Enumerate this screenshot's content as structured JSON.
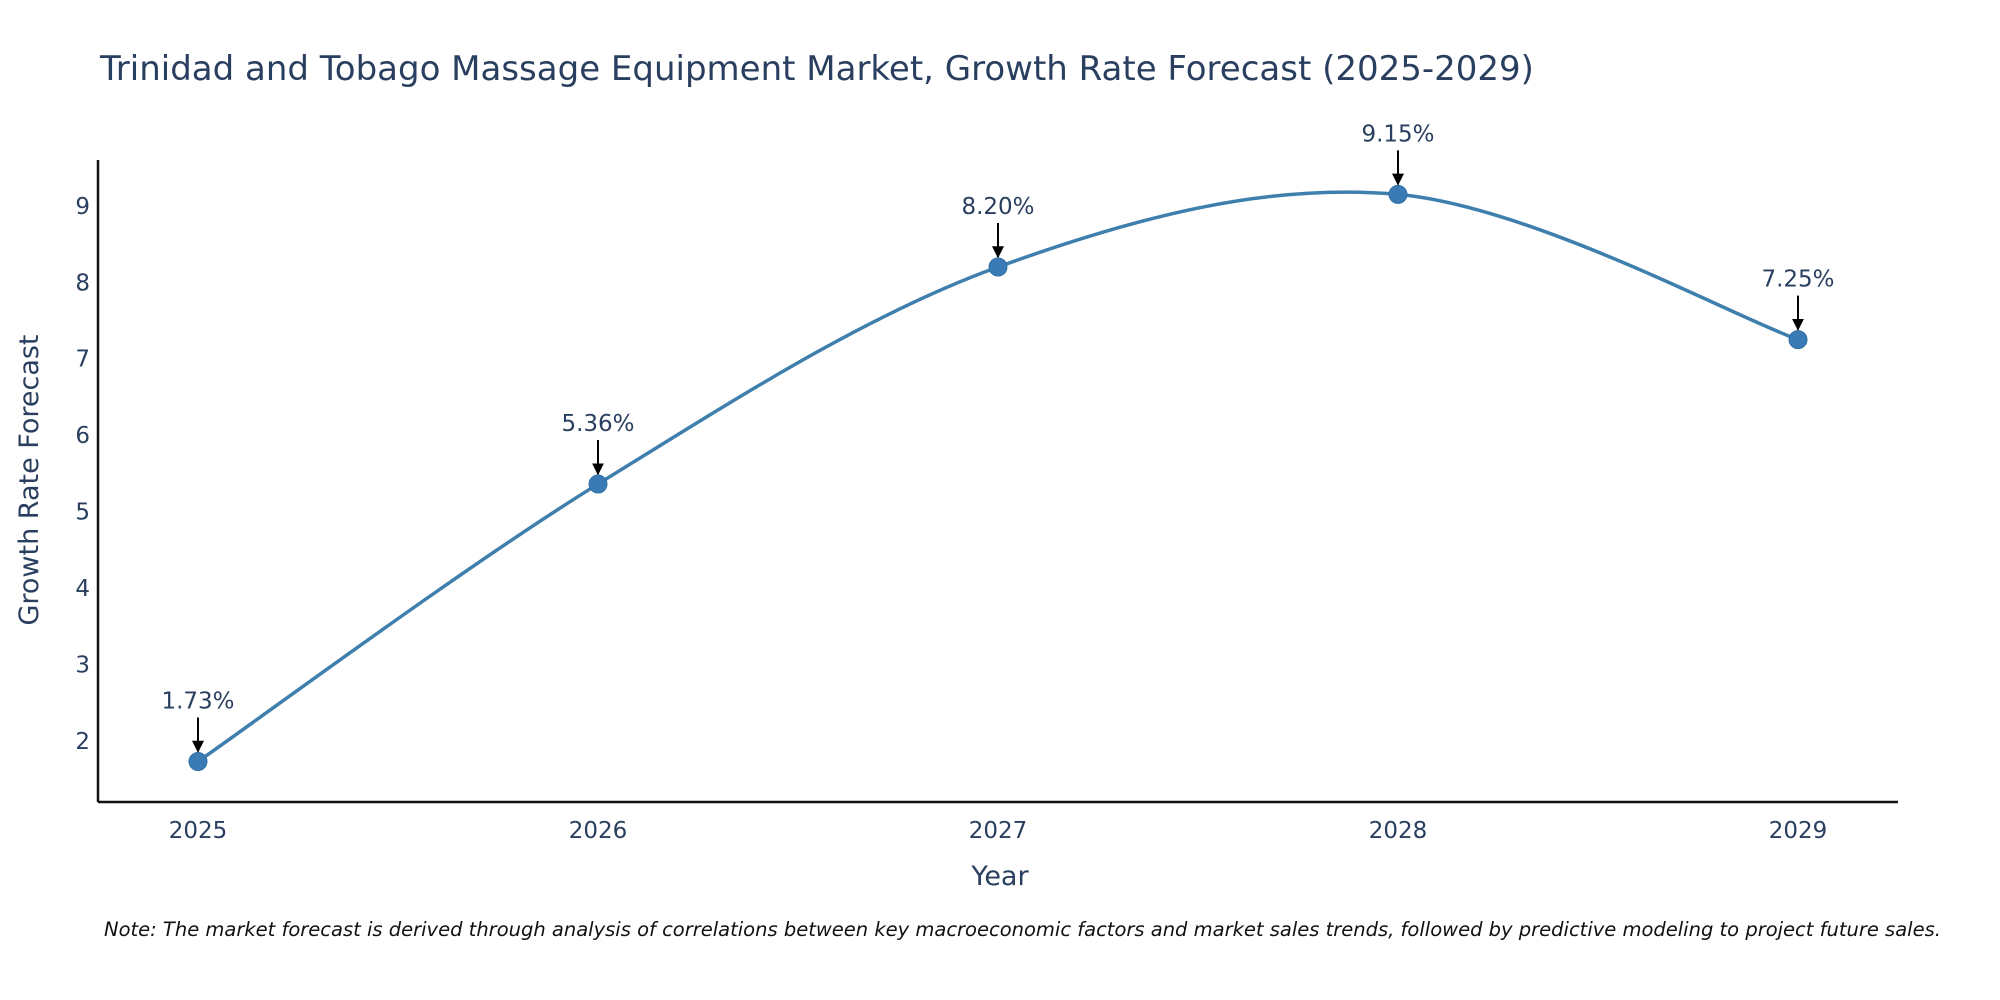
{
  "colors": {
    "line": "#3e7fad",
    "marker": "#3a7ab5",
    "text": "#2a3f5f",
    "axis": "#111111"
  },
  "chart_data": {
    "type": "line",
    "title": "Trinidad and Tobago Massage Equipment Market, Growth Rate Forecast (2025-2029)",
    "xlabel": "Year",
    "ylabel": "Growth Rate Forecast",
    "categories": [
      "2025",
      "2026",
      "2027",
      "2028",
      "2029"
    ],
    "series": [
      {
        "name": "Growth Rate Forecast",
        "values": [
          1.73,
          5.36,
          8.2,
          9.15,
          7.25
        ]
      }
    ],
    "annotations": [
      "1.73%",
      "5.36%",
      "8.20%",
      "9.15%",
      "7.25%"
    ],
    "yticks": [
      2,
      3,
      4,
      5,
      6,
      7,
      8,
      9
    ],
    "ylim": [
      1.2,
      9.6
    ],
    "xlim": [
      -0.25,
      4.25
    ],
    "line_shape": "spline",
    "grid": false
  },
  "note": "Note: The market forecast is derived through analysis of correlations between key macroeconomic factors and market sales trends, followed by predictive modeling to project future sales."
}
